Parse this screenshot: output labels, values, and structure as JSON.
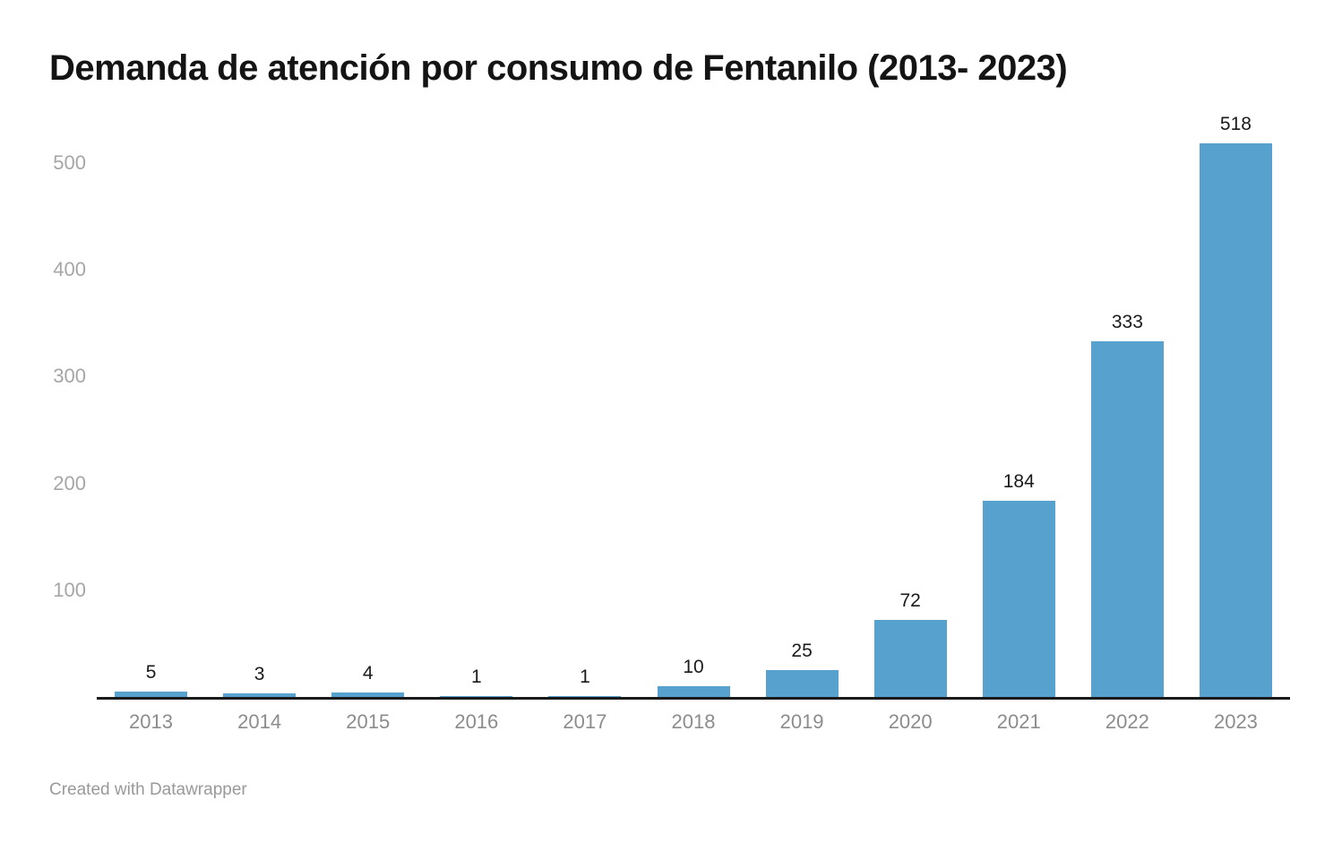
{
  "chart_data": {
    "type": "bar",
    "title": "Demanda de atención por consumo de Fentanilo (2013- 2023)",
    "categories": [
      "2013",
      "2014",
      "2015",
      "2016",
      "2017",
      "2018",
      "2019",
      "2020",
      "2021",
      "2022",
      "2023"
    ],
    "values": [
      5,
      3,
      4,
      1,
      1,
      10,
      25,
      72,
      184,
      333,
      518
    ],
    "value_labels": [
      "5",
      "3",
      "4",
      "1",
      "1",
      "10",
      "25",
      "72",
      "184",
      "333",
      "518"
    ],
    "xlabel": "",
    "ylabel": "",
    "ylim": [
      0,
      550
    ],
    "yticks": [
      "100",
      "200",
      "300",
      "400",
      "500"
    ],
    "ytick_values": [
      100,
      200,
      300,
      400,
      500
    ],
    "grid": false,
    "legend": false,
    "value_labels_shown": true
  },
  "footer": {
    "attribution": "Created with Datawrapper"
  },
  "colors": {
    "bar": "#56a1cd",
    "title": "#141414",
    "value_label": "#1a1a1a",
    "x_tick_label": "#8c8c8c",
    "y_tick_label": "#a6a6a6",
    "baseline": "#1a1a1a",
    "footer": "#999999",
    "background": "#ffffff"
  }
}
